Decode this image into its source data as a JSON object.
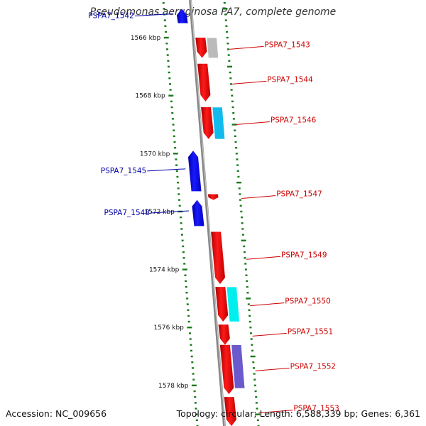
{
  "header": {
    "title": "Pseudomonas aeruginosa PA7, complete genome"
  },
  "footer": {
    "accession": "Accession: NC_009656",
    "topology": "Topology: circular; Length: 6,588,339 bp; Genes: 6,361"
  },
  "map": {
    "start_kbp": 1564.7,
    "end_kbp": 1579.4,
    "colors": {
      "reverse_strand": "#0000dd",
      "forward_strand": "#ee0000",
      "reverse_label": "#0000aa",
      "forward_label": "#cc0000",
      "ticks": "#1a7a1a",
      "backbone": "#888888",
      "cds_gray": "#bbbbbb",
      "cds_cyan": "#11bbee",
      "cds_cyan2": "#00eeee",
      "cds_purple": "#6a5acd"
    },
    "scale_labels": [
      "1566 kbp",
      "1568 kbp",
      "1570 kbp",
      "1572 kbp",
      "1574 kbp",
      "1576 kbp",
      "1578 kbp"
    ],
    "genes": [
      {
        "label": "PSPA7_1542",
        "strand": "reverse",
        "start_kbp": 1565.0,
        "end_kbp": 1565.5
      },
      {
        "label": "PSPA7_1543",
        "strand": "forward",
        "start_kbp": 1566.0,
        "end_kbp": 1566.7
      },
      {
        "label": "PSPA7_1544",
        "strand": "forward",
        "start_kbp": 1566.9,
        "end_kbp": 1568.2
      },
      {
        "label": "PSPA7_1546",
        "strand": "forward",
        "start_kbp": 1568.4,
        "end_kbp": 1569.5
      },
      {
        "label": "PSPA7_1545",
        "strand": "reverse",
        "start_kbp": 1569.9,
        "end_kbp": 1571.3
      },
      {
        "label": "PSPA7_1547",
        "strand": "forward",
        "start_kbp": 1571.4,
        "end_kbp": 1571.6
      },
      {
        "label": "PSPA7_1548",
        "strand": "reverse",
        "start_kbp": 1571.6,
        "end_kbp": 1572.5
      },
      {
        "label": "PSPA7_1549",
        "strand": "forward",
        "start_kbp": 1572.7,
        "end_kbp": 1574.5
      },
      {
        "label": "PSPA7_1550",
        "strand": "forward",
        "start_kbp": 1574.6,
        "end_kbp": 1575.8
      },
      {
        "label": "PSPA7_1551",
        "strand": "forward",
        "start_kbp": 1575.9,
        "end_kbp": 1576.6
      },
      {
        "label": "PSPA7_1552",
        "strand": "forward",
        "start_kbp": 1576.6,
        "end_kbp": 1578.3
      },
      {
        "label": "PSPA7_1553",
        "strand": "forward",
        "start_kbp": 1578.4,
        "end_kbp": 1579.4
      }
    ],
    "cds_features": [
      {
        "start_kbp": 1566.0,
        "end_kbp": 1566.7,
        "color": "cds_gray"
      },
      {
        "start_kbp": 1568.4,
        "end_kbp": 1569.5,
        "color": "cds_cyan"
      },
      {
        "start_kbp": 1574.6,
        "end_kbp": 1575.8,
        "color": "cds_cyan2"
      },
      {
        "start_kbp": 1576.6,
        "end_kbp": 1578.1,
        "color": "cds_purple"
      }
    ]
  }
}
